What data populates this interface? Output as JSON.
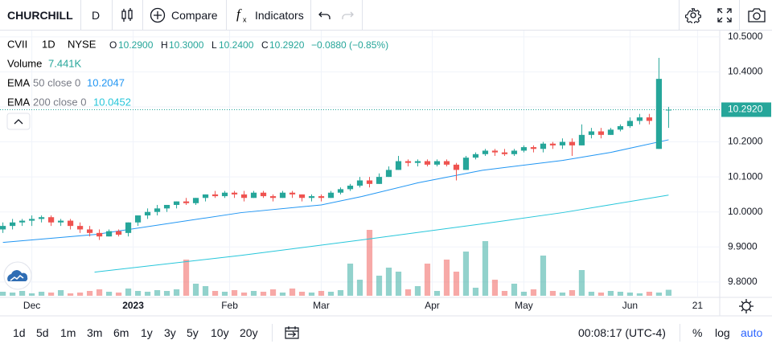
{
  "toolbar": {
    "symbol": "CHURCHILL",
    "interval": "D",
    "compare": "Compare",
    "indicators": "Indicators"
  },
  "legend": {
    "symbol": "CVII",
    "interval": "1D",
    "exchange": "NYSE",
    "o_label": "O",
    "o": "10.2900",
    "h_label": "H",
    "h": "10.3000",
    "l_label": "L",
    "l": "10.2400",
    "c_label": "C",
    "c": "10.2920",
    "change": "−0.0880 (−0.85%)",
    "volume_label": "Volume",
    "volume": "7.441K",
    "ema50_label": "EMA",
    "ema50_params": "50 close 0",
    "ema50": "10.2047",
    "ema200_label": "EMA",
    "ema200_params": "200 close 0",
    "ema200": "10.0452"
  },
  "chart_data": {
    "type": "candlestick",
    "up_color": "#26a69a",
    "down_color": "#ef5350",
    "xlim": [
      -0.3,
      74.3
    ],
    "xticks": [
      {
        "value": 3,
        "label": "Dec"
      },
      {
        "value": 13.5,
        "label": "2023"
      },
      {
        "value": 23.5,
        "label": "Feb"
      },
      {
        "value": 33,
        "label": "Mar"
      },
      {
        "value": 44.5,
        "label": "Apr"
      },
      {
        "value": 54,
        "label": "May"
      },
      {
        "value": 65,
        "label": "Jun"
      },
      {
        "value": 72,
        "label": "21"
      }
    ],
    "ylim": [
      9.756,
      10.518
    ],
    "yticks": [
      {
        "value": 9.8,
        "label": "9.8000"
      },
      {
        "value": 9.9,
        "label": "9.9000"
      },
      {
        "value": 10,
        "label": "10.0000"
      },
      {
        "value": 10.1,
        "label": "10.1000"
      },
      {
        "value": 10.2,
        "label": "10.2000"
      },
      {
        "value": 10.3,
        "label": "10.3000"
      },
      {
        "value": 10.4,
        "label": "10.4000"
      },
      {
        "value": 10.5,
        "label": "10.5000"
      }
    ],
    "grid": true,
    "last_price": {
      "value": 10.292,
      "label": "10.2920"
    },
    "candles": [
      [
        9.95,
        9.97,
        9.94,
        9.96
      ],
      [
        9.96,
        9.98,
        9.95,
        9.97
      ],
      [
        9.97,
        9.98,
        9.96,
        9.975
      ],
      [
        9.975,
        9.99,
        9.96,
        9.98
      ],
      [
        9.98,
        9.99,
        9.97,
        9.985
      ],
      [
        9.985,
        9.99,
        9.96,
        9.97
      ],
      [
        9.97,
        9.98,
        9.96,
        9.975
      ],
      [
        9.975,
        9.98,
        9.95,
        9.96
      ],
      [
        9.96,
        9.97,
        9.94,
        9.95
      ],
      [
        9.95,
        9.96,
        9.93,
        9.94
      ],
      [
        9.94,
        9.95,
        9.92,
        9.93
      ],
      [
        9.93,
        9.95,
        9.93,
        9.945
      ],
      [
        9.945,
        9.95,
        9.93,
        9.935
      ],
      [
        9.94,
        9.97,
        9.93,
        9.97
      ],
      [
        9.97,
        9.99,
        9.96,
        9.99
      ],
      [
        9.99,
        10.01,
        9.98,
        10.0
      ],
      [
        10.0,
        10.02,
        9.99,
        10.01
      ],
      [
        10.01,
        10.02,
        10.0,
        10.02
      ],
      [
        10.02,
        10.03,
        10.01,
        10.03
      ],
      [
        10.03,
        10.04,
        10.02,
        10.025
      ],
      [
        10.025,
        10.04,
        10.02,
        10.04
      ],
      [
        10.04,
        10.05,
        10.03,
        10.05
      ],
      [
        10.05,
        10.06,
        10.04,
        10.045
      ],
      [
        10.045,
        10.06,
        10.04,
        10.055
      ],
      [
        10.055,
        10.06,
        10.04,
        10.05
      ],
      [
        10.05,
        10.06,
        10.03,
        10.04
      ],
      [
        10.04,
        10.06,
        10.04,
        10.055
      ],
      [
        10.055,
        10.06,
        10.04,
        10.045
      ],
      [
        10.045,
        10.05,
        10.03,
        10.04
      ],
      [
        10.04,
        10.06,
        10.04,
        10.055
      ],
      [
        10.055,
        10.06,
        10.04,
        10.05
      ],
      [
        10.05,
        10.05,
        10.03,
        10.04
      ],
      [
        10.04,
        10.05,
        10.03,
        10.045
      ],
      [
        10.045,
        10.05,
        10.03,
        10.04
      ],
      [
        10.04,
        10.06,
        10.04,
        10.055
      ],
      [
        10.055,
        10.07,
        10.05,
        10.065
      ],
      [
        10.065,
        10.08,
        10.06,
        10.075
      ],
      [
        10.075,
        10.1,
        10.07,
        10.09
      ],
      [
        10.09,
        10.1,
        10.07,
        10.08
      ],
      [
        10.08,
        10.11,
        10.08,
        10.1
      ],
      [
        10.1,
        10.13,
        10.1,
        10.12
      ],
      [
        10.12,
        10.16,
        10.12,
        10.145
      ],
      [
        10.145,
        10.15,
        10.13,
        10.14
      ],
      [
        10.14,
        10.15,
        10.13,
        10.145
      ],
      [
        10.145,
        10.15,
        10.13,
        10.135
      ],
      [
        10.135,
        10.15,
        10.13,
        10.145
      ],
      [
        10.145,
        10.15,
        10.13,
        10.135
      ],
      [
        10.135,
        10.14,
        10.09,
        10.12
      ],
      [
        10.12,
        10.16,
        10.12,
        10.155
      ],
      [
        10.155,
        10.17,
        10.15,
        10.165
      ],
      [
        10.165,
        10.18,
        10.16,
        10.175
      ],
      [
        10.175,
        10.18,
        10.16,
        10.17
      ],
      [
        10.17,
        10.18,
        10.16,
        10.165
      ],
      [
        10.165,
        10.18,
        10.16,
        10.175
      ],
      [
        10.175,
        10.19,
        10.17,
        10.185
      ],
      [
        10.185,
        10.19,
        10.17,
        10.18
      ],
      [
        10.18,
        10.2,
        10.17,
        10.195
      ],
      [
        10.195,
        10.2,
        10.18,
        10.19
      ],
      [
        10.19,
        10.21,
        10.18,
        10.2
      ],
      [
        10.2,
        10.21,
        10.16,
        10.19
      ],
      [
        10.19,
        10.25,
        10.19,
        10.22
      ],
      [
        10.22,
        10.24,
        10.21,
        10.23
      ],
      [
        10.23,
        10.24,
        10.21,
        10.22
      ],
      [
        10.22,
        10.24,
        10.22,
        10.235
      ],
      [
        10.235,
        10.25,
        10.23,
        10.245
      ],
      [
        10.245,
        10.27,
        10.24,
        10.26
      ],
      [
        10.26,
        10.28,
        10.25,
        10.27
      ],
      [
        10.27,
        10.28,
        10.25,
        10.26
      ],
      [
        10.18,
        10.44,
        10.18,
        10.38
      ],
      [
        10.29,
        10.3,
        10.24,
        10.292
      ]
    ],
    "volume_lim": [
      0,
      332
    ],
    "volume": [
      5,
      4,
      6,
      3,
      5,
      4,
      7,
      3,
      4,
      6,
      8,
      5,
      4,
      9,
      6,
      5,
      7,
      6,
      8,
      45,
      15,
      12,
      6,
      5,
      7,
      4,
      6,
      5,
      8,
      4,
      9,
      5,
      4,
      6,
      5,
      7,
      40,
      20,
      82,
      25,
      35,
      30,
      8,
      12,
      40,
      6,
      45,
      30,
      55,
      10,
      68,
      20,
      6,
      15,
      5,
      8,
      50,
      6,
      4,
      7,
      32,
      5,
      4,
      6,
      5,
      4,
      3,
      5,
      4,
      7.441
    ],
    "lines": [
      {
        "color": "#2196f3",
        "x": [
          0,
          9.7,
          24.7,
          33,
          37.2,
          43,
          49.7,
          58,
          63,
          69
        ],
        "values": [
          9.913,
          9.936,
          9.998,
          10.02,
          10.044,
          10.083,
          10.119,
          10.147,
          10.17,
          10.206
        ]
      },
      {
        "color": "#26c6da",
        "x": [
          9.5,
          24.7,
          37.2,
          49.7,
          58,
          69
        ],
        "values": [
          9.828,
          9.876,
          9.92,
          9.966,
          9.998,
          10.048
        ]
      }
    ]
  },
  "bottom_bar": {
    "ranges": [
      "1d",
      "5d",
      "1m",
      "3m",
      "6m",
      "1y",
      "3y",
      "5y",
      "10y",
      "20y"
    ],
    "clock": "00:08:17 (UTC-4)",
    "percent": "%",
    "log": "log",
    "auto": "auto"
  }
}
